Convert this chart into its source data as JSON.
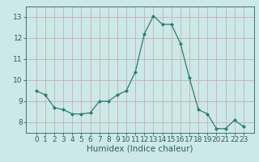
{
  "x": [
    0,
    1,
    2,
    3,
    4,
    5,
    6,
    7,
    8,
    9,
    10,
    11,
    12,
    13,
    14,
    15,
    16,
    17,
    18,
    19,
    20,
    21,
    22,
    23
  ],
  "y": [
    9.5,
    9.3,
    8.7,
    8.6,
    8.4,
    8.4,
    8.45,
    9.0,
    9.0,
    9.3,
    9.5,
    10.4,
    12.2,
    13.05,
    12.65,
    12.65,
    11.75,
    10.1,
    8.6,
    8.4,
    7.7,
    7.7,
    8.1,
    7.8
  ],
  "line_color": "#2e7d6e",
  "marker": "D",
  "marker_size": 2.0,
  "bg_color": "#cce8e8",
  "grid_color": "#c8b0b0",
  "xlabel": "Humidex (Indice chaleur)",
  "ylim": [
    7.5,
    13.5
  ],
  "yticks": [
    8,
    9,
    10,
    11,
    12,
    13
  ],
  "xticks": [
    0,
    1,
    2,
    3,
    4,
    5,
    6,
    7,
    8,
    9,
    10,
    11,
    12,
    13,
    14,
    15,
    16,
    17,
    18,
    19,
    20,
    21,
    22,
    23
  ],
  "tick_color": "#2e6060",
  "tick_label_color": "#2e6060",
  "xlabel_color": "#2e6060",
  "xlabel_fontsize": 7.5,
  "tick_fontsize": 6.5,
  "linewidth": 0.9
}
